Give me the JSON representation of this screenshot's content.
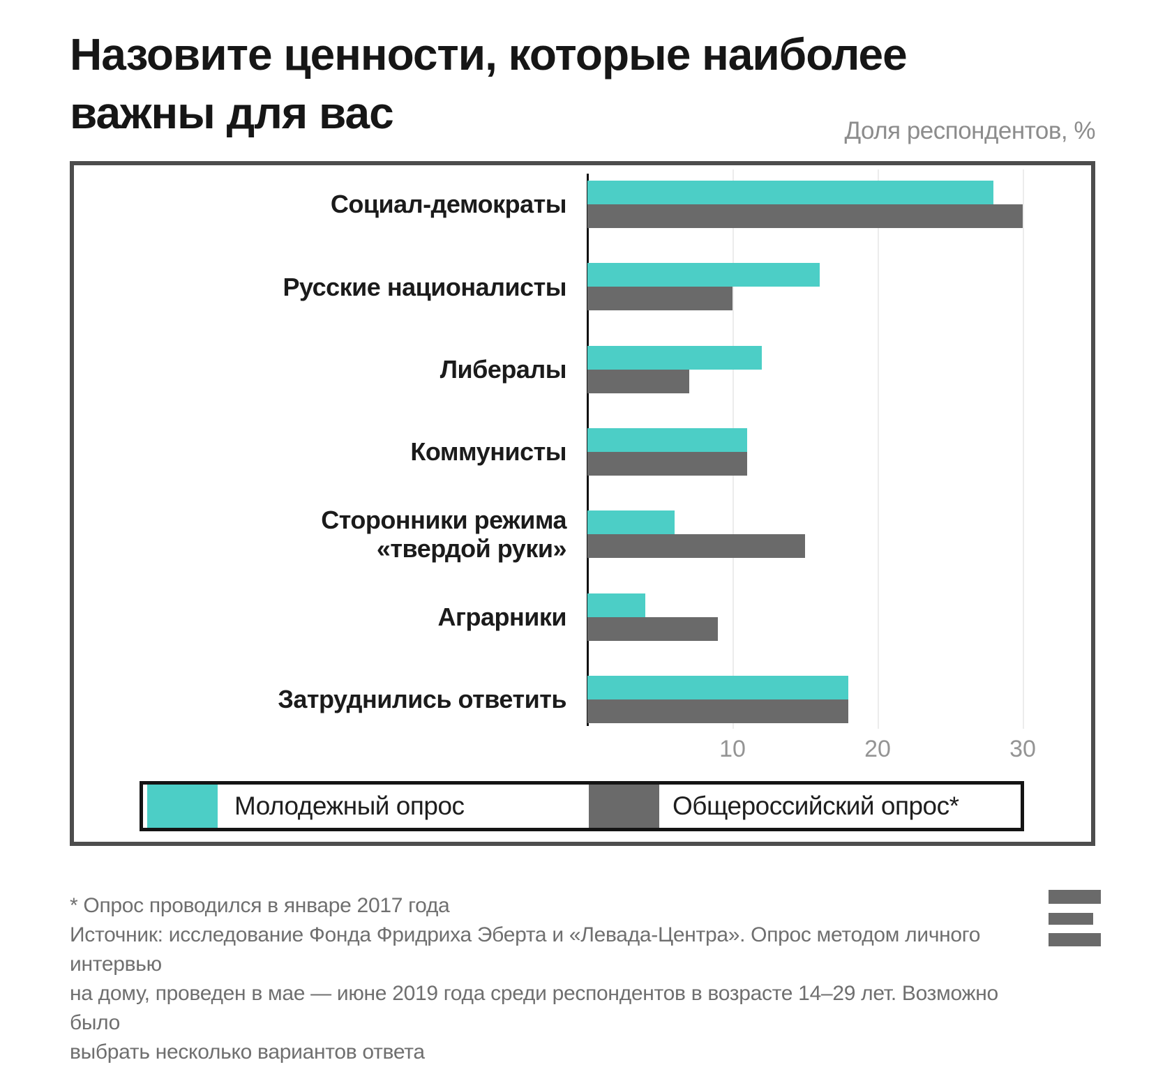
{
  "page": {
    "title_lines": [
      "Назовите ценности, которые наиболее",
      "важны для вас"
    ],
    "subtitle": "Доля респондентов, %"
  },
  "chart_data": {
    "type": "bar",
    "orientation": "horizontal",
    "title": "Назовите ценности, которые наиболее важны для вас",
    "units_label": "Доля респондентов, %",
    "categories": [
      "Социал-демократы",
      "Русские националисты",
      "Либералы",
      "Коммунисты",
      "Сторонники режима\n«твердой руки»",
      "Аграрники",
      "Затруднились ответить"
    ],
    "series": [
      {
        "name": "Молодежный опрос",
        "color": "#4CCEC6",
        "values": [
          28,
          16,
          12,
          11,
          6,
          4,
          18
        ]
      },
      {
        "name": "Общероссийский опрос*",
        "color": "#6A6A6A",
        "values": [
          30,
          10,
          7,
          11,
          15,
          9,
          18
        ]
      }
    ],
    "x_ticks": [
      10,
      20,
      30
    ],
    "xlim": [
      0,
      34.5
    ],
    "grid": true,
    "legend_position": "bottom-inside-frame"
  },
  "footnote": {
    "asterisk_note": "* Опрос проводился в январе 2017 года",
    "source": "Источник: исследование Фонда Фридриха Эберта и «Левада-Центра». Опрос методом личного интервью\nна дому, проведен в мае — июне 2019 года среди респондентов в возрасте 14–29 лет. Возможно было\nвыбрать несколько вариантов ответа"
  },
  "colors": {
    "youth_bar": "#4CCEC6",
    "allrussia_bar": "#6A6A6A",
    "frame_border": "#4D4D4D",
    "legend_border": "#141414",
    "gridline": "#ECECEC"
  }
}
